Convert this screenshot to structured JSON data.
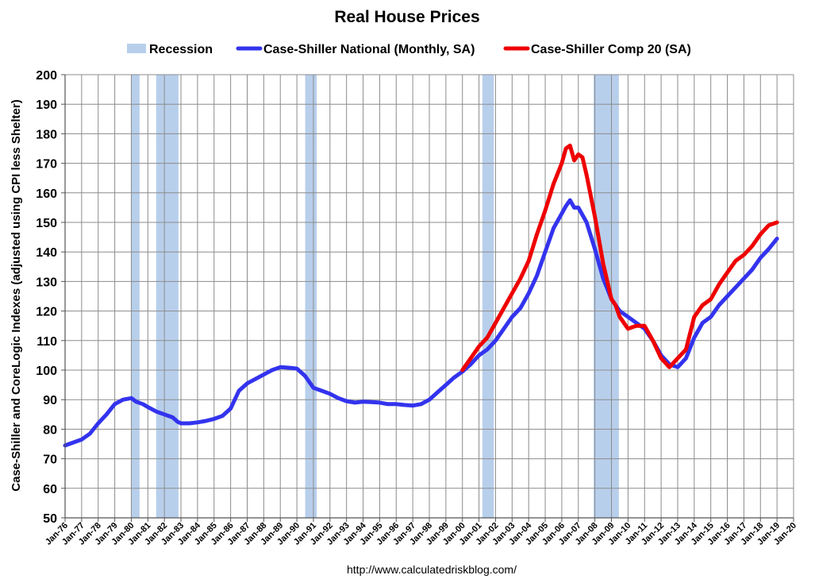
{
  "chart_data": {
    "type": "line",
    "title": "Real House Prices",
    "ylabel": "Case-Shiller and CoreLogic Indexes (adjusted using CPI less Shelter)",
    "xlabel": "",
    "source": "http://www.calculatedriskblog.com/",
    "ylim": [
      50,
      200
    ],
    "xlim": [
      1976.0,
      2020.0
    ],
    "yticks": [
      50,
      60,
      70,
      80,
      90,
      100,
      110,
      120,
      130,
      140,
      150,
      160,
      170,
      180,
      190,
      200
    ],
    "xticks": [
      1976,
      1977,
      1978,
      1979,
      1980,
      1981,
      1982,
      1983,
      1984,
      1985,
      1986,
      1987,
      1988,
      1989,
      1990,
      1991,
      1992,
      1993,
      1994,
      1995,
      1996,
      1997,
      1998,
      1999,
      2000,
      2001,
      2002,
      2003,
      2004,
      2005,
      2006,
      2007,
      2008,
      2009,
      2010,
      2011,
      2012,
      2013,
      2014,
      2015,
      2016,
      2017,
      2018,
      2019,
      2020
    ],
    "xtick_labels": [
      "Jan-76",
      "Jan-77",
      "Jan-78",
      "Jan-79",
      "Jan-80",
      "Jan-81",
      "Jan-82",
      "Jan-83",
      "Jan-84",
      "Jan-85",
      "Jan-86",
      "Jan-87",
      "Jan-88",
      "Jan-89",
      "Jan-90",
      "Jan-91",
      "Jan-92",
      "Jan-93",
      "Jan-94",
      "Jan-95",
      "Jan-96",
      "Jan-97",
      "Jan-98",
      "Jan-99",
      "Jan-00",
      "Jan-01",
      "Jan-02",
      "Jan-03",
      "Jan-04",
      "Jan-05",
      "Jan-06",
      "Jan-07",
      "Jan-08",
      "Jan-09",
      "Jan-10",
      "Jan-11",
      "Jan-12",
      "Jan-13",
      "Jan-14",
      "Jan-15",
      "Jan-16",
      "Jan-17",
      "Jan-18",
      "Jan-19",
      "Jan-20"
    ],
    "legend": [
      {
        "label": "Recession",
        "kind": "band",
        "color": "#b8cfec"
      },
      {
        "label": "Case-Shiller National (Monthly, SA)",
        "kind": "line",
        "color": "#3333ee"
      },
      {
        "label": "Case-Shiller Comp 20  (SA)",
        "kind": "line",
        "color": "#ee0000"
      }
    ],
    "recessions": [
      {
        "start": 1980.0,
        "end": 1980.5
      },
      {
        "start": 1981.5,
        "end": 1982.85
      },
      {
        "start": 1990.5,
        "end": 1991.2
      },
      {
        "start": 2001.2,
        "end": 2001.9
      },
      {
        "start": 2007.92,
        "end": 2009.45
      }
    ],
    "series": [
      {
        "name": "Case-Shiller National (Monthly, SA)",
        "color": "#3333ee",
        "x": [
          1976.0,
          1976.5,
          1977.0,
          1977.5,
          1978.0,
          1978.5,
          1979.0,
          1979.5,
          1980.0,
          1980.3,
          1980.7,
          1981.0,
          1981.5,
          1982.0,
          1982.5,
          1982.8,
          1983.0,
          1983.5,
          1984.0,
          1984.5,
          1985.0,
          1985.5,
          1986.0,
          1986.5,
          1987.0,
          1987.5,
          1988.0,
          1988.5,
          1989.0,
          1989.5,
          1990.0,
          1990.5,
          1991.0,
          1991.5,
          1992.0,
          1992.5,
          1993.0,
          1993.5,
          1994.0,
          1994.5,
          1995.0,
          1995.5,
          1996.0,
          1996.5,
          1997.0,
          1997.5,
          1998.0,
          1998.5,
          1999.0,
          1999.5,
          2000.0,
          2000.5,
          2001.0,
          2001.5,
          2002.0,
          2002.5,
          2003.0,
          2003.5,
          2004.0,
          2004.5,
          2005.0,
          2005.5,
          2006.0,
          2006.25,
          2006.5,
          2006.75,
          2007.0,
          2007.5,
          2008.0,
          2008.5,
          2009.0,
          2009.5,
          2010.0,
          2010.5,
          2011.0,
          2011.5,
          2012.0,
          2012.5,
          2013.0,
          2013.5,
          2014.0,
          2014.5,
          2015.0,
          2015.5,
          2016.0,
          2016.5,
          2017.0,
          2017.5,
          2018.0,
          2018.5,
          2019.0
        ],
        "values": [
          74.5,
          75.5,
          76.5,
          78.5,
          82,
          85,
          88.5,
          90,
          90.5,
          89.3,
          88.5,
          87.5,
          86,
          85,
          84,
          82.5,
          82,
          82,
          82.3,
          82.8,
          83.5,
          84.5,
          87,
          93,
          95.5,
          97,
          98.5,
          100,
          101,
          100.8,
          100.5,
          98,
          94,
          93,
          92,
          90.5,
          89.5,
          89,
          89.3,
          89.2,
          89,
          88.5,
          88.5,
          88.2,
          88,
          88.5,
          90,
          92.5,
          95,
          97.5,
          99.5,
          102,
          105,
          107,
          110,
          114,
          118,
          121,
          126,
          132,
          140,
          148,
          153,
          155.5,
          157.5,
          155,
          155,
          150,
          141,
          131,
          124,
          120,
          118,
          116,
          114,
          110,
          105,
          102,
          101,
          104,
          111,
          116,
          118,
          122,
          125,
          128,
          131,
          134,
          138,
          141,
          144.5
        ]
      },
      {
        "name": "Case-Shiller Comp 20  (SA)",
        "color": "#ee0000",
        "x": [
          2000.0,
          2000.5,
          2001.0,
          2001.5,
          2002.0,
          2002.5,
          2003.0,
          2003.5,
          2004.0,
          2004.5,
          2005.0,
          2005.5,
          2006.0,
          2006.25,
          2006.5,
          2006.75,
          2007.0,
          2007.25,
          2007.5,
          2008.0,
          2008.5,
          2009.0,
          2009.25,
          2009.5,
          2010.0,
          2010.5,
          2011.0,
          2011.5,
          2012.0,
          2012.5,
          2013.0,
          2013.5,
          2014.0,
          2014.5,
          2015.0,
          2015.5,
          2016.0,
          2016.5,
          2017.0,
          2017.5,
          2018.0,
          2018.5,
          2019.0
        ],
        "values": [
          100,
          104,
          108,
          111,
          116,
          121,
          126,
          131,
          137,
          146,
          154,
          163,
          170,
          175,
          176,
          171,
          173,
          172,
          166,
          152,
          136,
          124,
          122,
          118,
          114,
          115,
          115,
          110,
          104,
          101,
          104,
          107,
          118,
          122,
          124,
          129,
          133,
          137,
          139,
          142,
          146,
          149,
          150
        ]
      }
    ]
  }
}
